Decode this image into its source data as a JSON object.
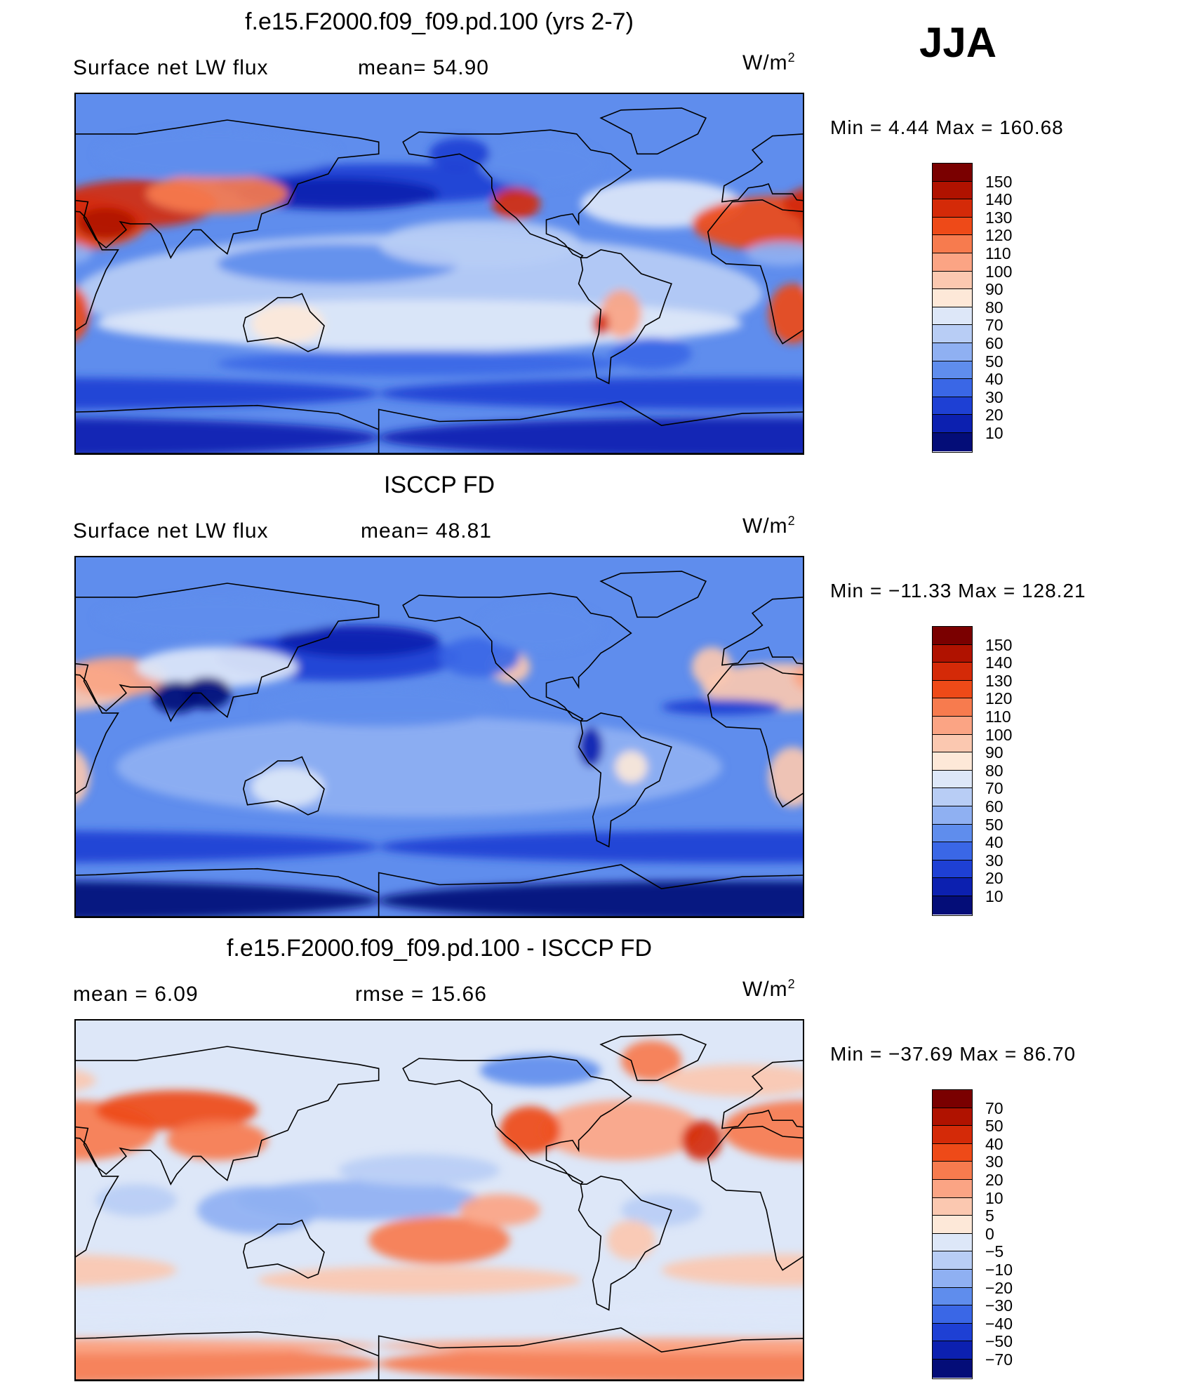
{
  "season": "JJA",
  "units": "W/m2",
  "units_base": "W/m",
  "units_exp": "2",
  "panels": [
    {
      "title": "f.e15.F2000.f09_f09.pd.100 (yrs 2-7)",
      "left_label": "Surface net LW flux",
      "mid_label": "mean=  54.90",
      "min_text": "Min  =    4.44  Max  =  160.68",
      "levels": [
        "150",
        "140",
        "130",
        "120",
        "110",
        "100",
        "90",
        "80",
        "70",
        "60",
        "50",
        "40",
        "30",
        "20",
        "10"
      ],
      "colors": [
        "#7a0000",
        "#b01200",
        "#d42a08",
        "#ee4a18",
        "#f77b4e",
        "#fba484",
        "#fbc8b0",
        "#fde8d8",
        "#dde7f8",
        "#b8cdf5",
        "#8fb0f2",
        "#5f8ded",
        "#3a67e6",
        "#1e40d4",
        "#0c20b0",
        "#040d78"
      ],
      "map_type": "field"
    },
    {
      "title": "ISCCP FD",
      "left_label": "Surface net LW flux",
      "mid_label": "mean=  48.81",
      "min_text": "Min  = −11.33  Max  =  128.21",
      "levels": [
        "150",
        "140",
        "130",
        "120",
        "110",
        "100",
        "90",
        "80",
        "70",
        "60",
        "50",
        "40",
        "30",
        "20",
        "10"
      ],
      "colors": [
        "#7a0000",
        "#b01200",
        "#d42a08",
        "#ee4a18",
        "#f77b4e",
        "#fba484",
        "#fbc8b0",
        "#fde8d8",
        "#dde7f8",
        "#b8cdf5",
        "#8fb0f2",
        "#5f8ded",
        "#3a67e6",
        "#1e40d4",
        "#0c20b0",
        "#040d78"
      ],
      "map_type": "obs"
    },
    {
      "title": "f.e15.F2000.f09_f09.pd.100 - ISCCP FD",
      "left_label": "mean  =     6.09",
      "mid_label": "rmse  =    15.66",
      "min_text": "Min  = −37.69  Max  =    86.70",
      "levels": [
        "70",
        "50",
        "40",
        "30",
        "20",
        "10",
        "5",
        "0",
        "−5",
        "−10",
        "−20",
        "−30",
        "−40",
        "−50",
        "−70"
      ],
      "colors": [
        "#7a0000",
        "#b01200",
        "#d42a08",
        "#ee4a18",
        "#f77b4e",
        "#fba484",
        "#fbc8b0",
        "#fde8d8",
        "#dde7f8",
        "#b8cdf5",
        "#8fb0f2",
        "#5f8ded",
        "#3a67e6",
        "#1e40d4",
        "#0c20b0",
        "#040d78"
      ],
      "map_type": "diff"
    }
  ]
}
